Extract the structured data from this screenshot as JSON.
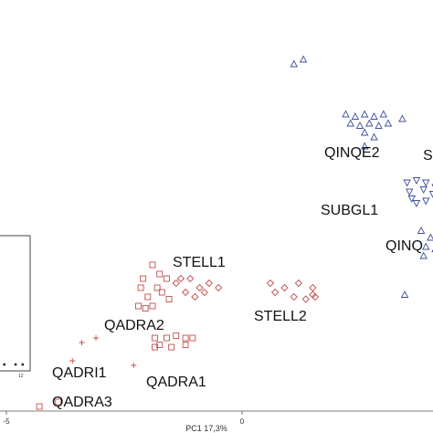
{
  "chart_data": {
    "type": "scatter",
    "xlabel": "PC1 17,3%",
    "x_ticks": [
      "-5",
      "0"
    ],
    "inset_tick": "12",
    "group_labels": [
      "STELL1",
      "QADRA2",
      "STELL2",
      "QADRI1",
      "QADRA1",
      "QADRA3",
      "QINQE2",
      "SUBGL1",
      "S",
      "QINQ"
    ],
    "series": [
      {
        "name": "QADRA2",
        "marker": "square",
        "color": "#c0504d",
        "points": [
          [
            -1.9,
            4.2
          ],
          [
            -2.1,
            3.9
          ],
          [
            -1.8,
            3.7
          ],
          [
            -2.0,
            3.5
          ],
          [
            -2.2,
            3.3
          ],
          [
            -1.7,
            3.6
          ],
          [
            -1.6,
            3.9
          ],
          [
            -1.9,
            3.3
          ],
          [
            -2.15,
            3.7
          ],
          [
            -1.75,
            4.0
          ],
          [
            -2.05,
            3.25
          ],
          [
            -1.55,
            3.45
          ]
        ]
      },
      {
        "name": "STELL1",
        "marker": "diamond",
        "color": "#c0504d",
        "points": [
          [
            -1.4,
            3.8
          ],
          [
            -1.1,
            3.9
          ],
          [
            -0.9,
            3.7
          ],
          [
            -0.7,
            3.8
          ],
          [
            -1.2,
            3.6
          ],
          [
            -1.0,
            3.5
          ],
          [
            -0.8,
            3.6
          ],
          [
            -0.5,
            3.7
          ],
          [
            -1.3,
            3.9
          ]
        ]
      },
      {
        "name": "STELL2",
        "marker": "diamond",
        "color": "#c0504d",
        "points": [
          [
            0.6,
            3.8
          ],
          [
            0.9,
            3.7
          ],
          [
            1.2,
            3.8
          ],
          [
            1.5,
            3.7
          ],
          [
            1.5,
            3.55
          ],
          [
            0.7,
            3.6
          ],
          [
            1.1,
            3.5
          ],
          [
            1.35,
            3.45
          ],
          [
            1.55,
            3.5
          ]
        ]
      },
      {
        "name": "QADRI1",
        "marker": "plus",
        "color": "#c0504d",
        "points": [
          [
            -3.4,
            2.5
          ],
          [
            -3.1,
            2.6
          ],
          [
            -3.6,
            2.1
          ],
          [
            -2.3,
            2.0
          ]
        ]
      },
      {
        "name": "QADRA1",
        "marker": "square",
        "color": "#c0504d",
        "points": [
          [
            -1.85,
            2.6
          ],
          [
            -1.6,
            2.6
          ],
          [
            -1.4,
            2.65
          ],
          [
            -1.2,
            2.6
          ],
          [
            -1.05,
            2.6
          ],
          [
            -1.75,
            2.45
          ],
          [
            -1.5,
            2.4
          ],
          [
            -1.2,
            2.45
          ],
          [
            -1.85,
            2.4
          ]
        ]
      },
      {
        "name": "QADRA3",
        "marker": "square",
        "color": "#c0504d",
        "points": [
          [
            -3.9,
            1.2
          ],
          [
            -4.3,
            1.1
          ]
        ]
      },
      {
        "name": "QINQE2",
        "marker": "triangle-up",
        "color": "#3f4f9a",
        "points": [
          [
            1.1,
            8.6
          ],
          [
            1.3,
            8.7
          ],
          [
            2.2,
            7.5
          ],
          [
            2.4,
            7.45
          ],
          [
            2.6,
            7.5
          ],
          [
            2.8,
            7.45
          ],
          [
            3.0,
            7.5
          ],
          [
            2.3,
            7.3
          ],
          [
            2.5,
            7.25
          ],
          [
            2.7,
            7.3
          ],
          [
            2.9,
            7.25
          ],
          [
            2.6,
            7.1
          ],
          [
            2.8,
            7.0
          ],
          [
            3.1,
            7.3
          ],
          [
            2.6,
            6.8
          ],
          [
            3.4,
            7.4
          ]
        ]
      },
      {
        "name": "SUBGL1",
        "marker": "triangle-down",
        "color": "#3f4f9a",
        "points": [
          [
            3.5,
            6.0
          ],
          [
            3.7,
            6.05
          ],
          [
            3.9,
            6.0
          ],
          [
            4.1,
            5.9
          ],
          [
            3.55,
            5.8
          ],
          [
            3.85,
            5.85
          ],
          [
            4.05,
            5.75
          ],
          [
            3.6,
            5.65
          ],
          [
            3.9,
            5.6
          ],
          [
            3.7,
            5.55
          ],
          [
            4.2,
            5.7
          ]
        ]
      },
      {
        "name": "QINQ",
        "marker": "triangle-up",
        "color": "#3f4f9a",
        "points": [
          [
            3.8,
            4.95
          ],
          [
            4.0,
            4.8
          ],
          [
            4.2,
            4.85
          ],
          [
            3.9,
            4.6
          ],
          [
            4.1,
            4.55
          ],
          [
            4.3,
            4.5
          ],
          [
            3.85,
            4.4
          ],
          [
            4.25,
            4.7
          ],
          [
            3.45,
            3.55
          ],
          [
            4.3,
            4.25
          ]
        ]
      }
    ],
    "inset_points": [
      [
        0.15,
        0.5
      ],
      [
        0.55,
        0.5
      ],
      [
        0.8,
        0.5
      ]
    ]
  }
}
